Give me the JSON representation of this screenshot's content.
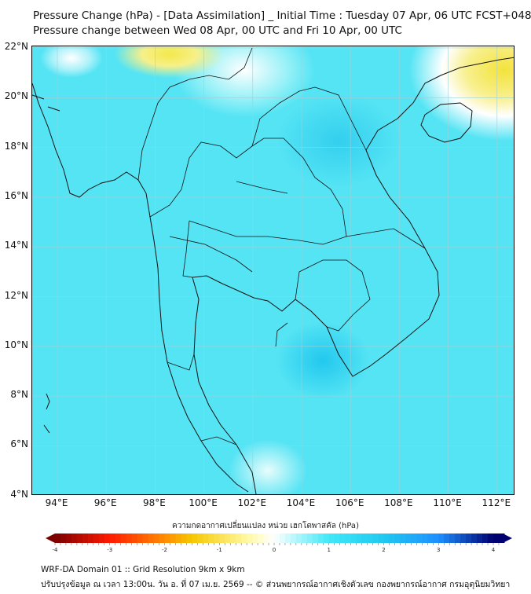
{
  "title": {
    "line1": "Pressure Change (hPa) - [Data Assimilation] _ Initial Time : Tuesday 07 Apr, 06 UTC FCST+048",
    "line2": "Pressure change between Wed 08 Apr, 00 UTC and Fri 10 Apr, 00 UTC"
  },
  "axes": {
    "lat_labels": [
      "22°N",
      "20°N",
      "18°N",
      "16°N",
      "14°N",
      "12°N",
      "10°N",
      "8°N",
      "6°N",
      "4°N"
    ],
    "lon_labels": [
      "94°E",
      "96°E",
      "98°E",
      "100°E",
      "102°E",
      "104°E",
      "106°E",
      "108°E",
      "110°E",
      "112°E"
    ]
  },
  "colorbar": {
    "label": "ความกดอากาศเปลี่ยนแปลง หน่วย เฮกโตพาสคัล (hPa)",
    "ticks": [
      "-4",
      "-3",
      "-2",
      "-1",
      "0",
      "1",
      "2",
      "3",
      "4"
    ],
    "min": -4,
    "max": 4,
    "colors": {
      "neg_dark": "#7a0000",
      "neg": "#ff1a00",
      "warn": "#f5c800",
      "neutral": "#ffffff",
      "pos": "#40e8f8",
      "pos_mid": "#1e90ff",
      "pos_dark": "#000070"
    }
  },
  "footer": {
    "line1": "WRF-DA Domain 01 :: Grid Resolution 9km x 9km",
    "line2": "ปรับปรุงข้อมูล ณ เวลา 13:00น. วัน อ. ที่ 07 เม.ย. 2569 -- © ส่วนพยากรณ์อากาศเชิงตัวเลข กองพยากรณ์อากาศ กรมอุตุนิยมวิทยา"
  }
}
